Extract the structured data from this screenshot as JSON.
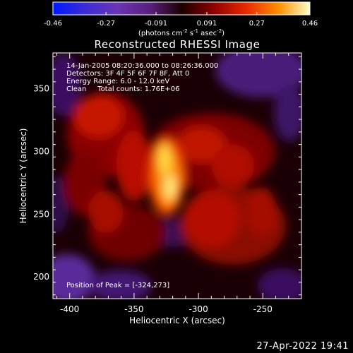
{
  "colorbar": {
    "ticks": [
      "-0.46",
      "-0.27",
      "-0.091",
      "0.091",
      "0.27",
      "0.46"
    ],
    "unit_main": "(photons cm",
    "unit_exp1": "-2",
    "unit_mid": " s",
    "unit_exp2": "-1",
    "unit_tail": " asec",
    "unit_exp3": "-2",
    "unit_close": ")"
  },
  "chart_data": {
    "type": "heatmap",
    "title": "Reconstructed RHESSI Image",
    "xlabel": "Heliocentric X (arcsec)",
    "ylabel": "Heliocentric Y (arcsec)",
    "xlim": [
      -413,
      -220
    ],
    "ylim": [
      182,
      378
    ],
    "xticks": [
      "-400",
      "-350",
      "-300",
      "-250"
    ],
    "yticks": [
      "200",
      "250",
      "300",
      "350"
    ],
    "colorbar_range": [
      -0.46,
      0.46
    ],
    "peak": {
      "x": -324,
      "y": 273
    },
    "annotations": [
      "14-Jan-2005 08:20:36.000 to 08:26:36.000",
      "Detectors: 3F 4F 5F 6F 7F 8F, Att 0",
      "Energy Range: 6.0 - 12.0 keV",
      "Clean     Total counts: 1.76E+06",
      "Position of Peak = [-324,273]"
    ]
  },
  "footer": "27-Apr-2022 19:41"
}
